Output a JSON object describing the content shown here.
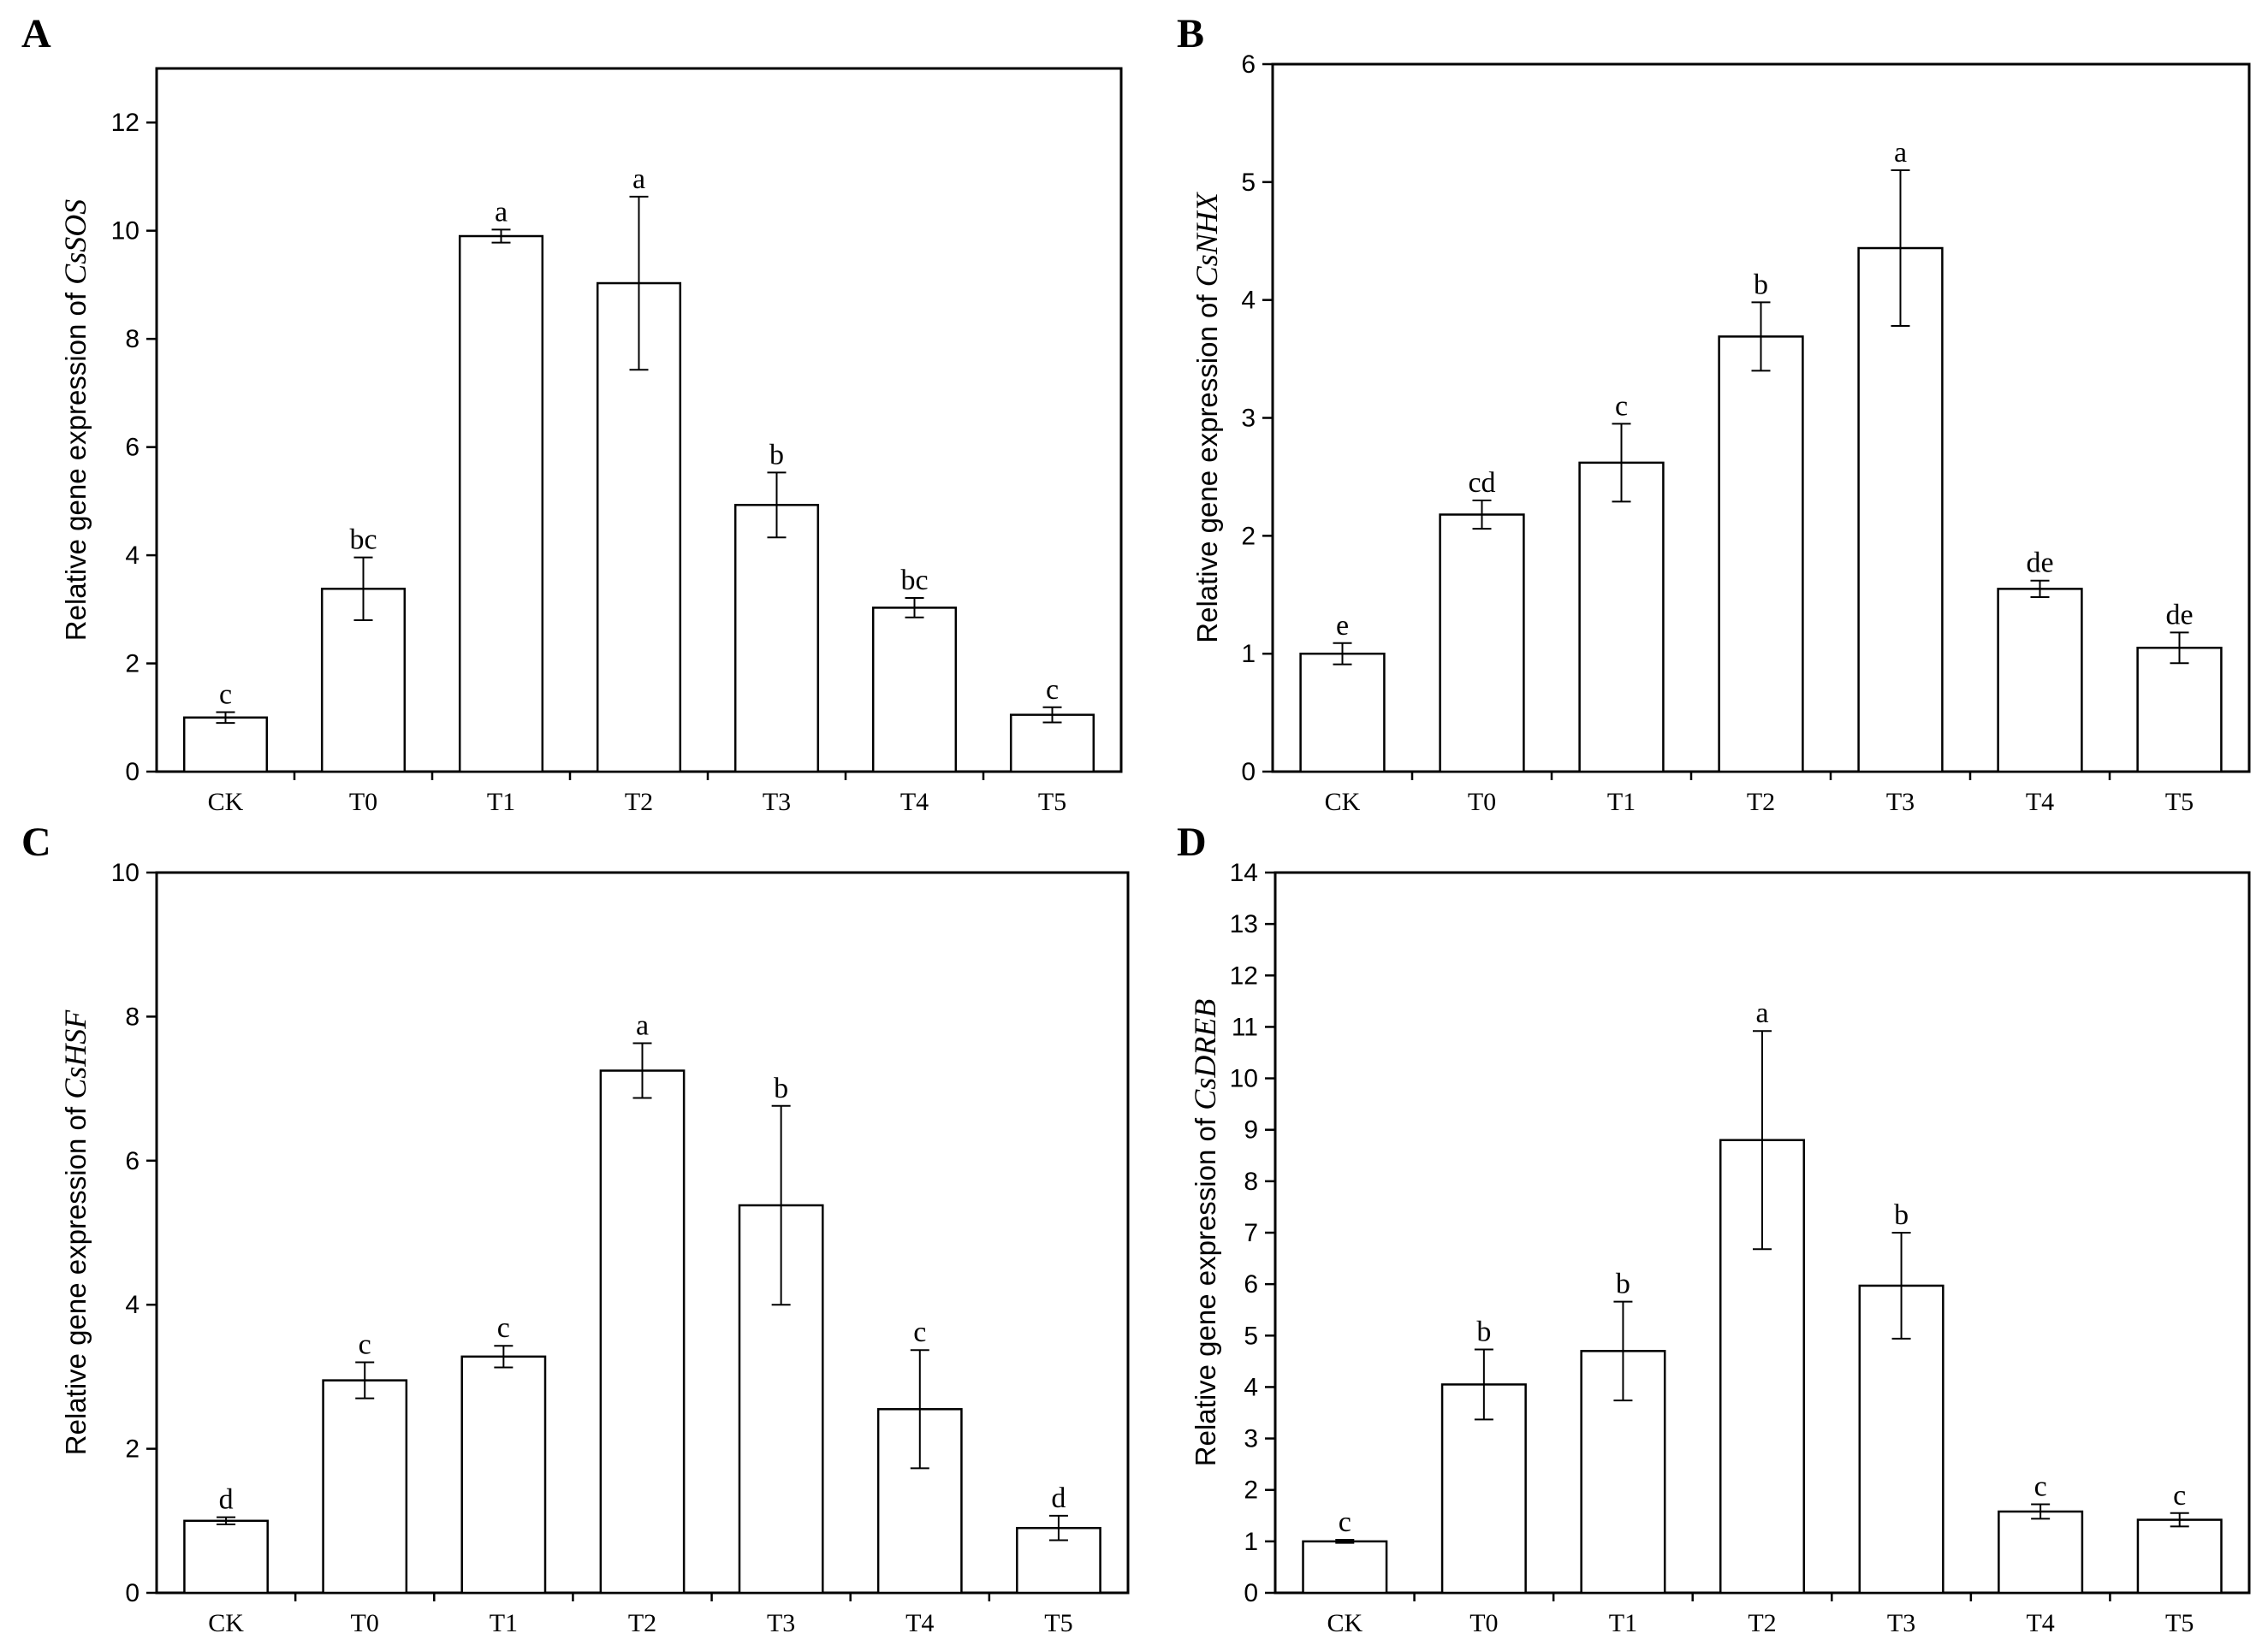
{
  "chart_data": [
    {
      "panel": "A",
      "type": "bar",
      "ylabel": "Relative gene expression of ",
      "gene": "CsSOS",
      "categories": [
        "CK",
        "T0",
        "T1",
        "T2",
        "T3",
        "T4",
        "T5"
      ],
      "values": [
        1.0,
        3.38,
        9.9,
        9.03,
        4.93,
        3.03,
        1.05
      ],
      "errors": [
        0.1,
        0.58,
        0.12,
        1.6,
        0.6,
        0.18,
        0.14
      ],
      "significance": [
        "c",
        "bc",
        "a",
        "a",
        "b",
        "bc",
        "c"
      ],
      "ylim": [
        0,
        13
      ],
      "yticks": [
        0,
        2,
        4,
        6,
        8,
        10,
        12
      ]
    },
    {
      "panel": "B",
      "type": "bar",
      "ylabel": "Relative gene expression of ",
      "gene": "CsNHX",
      "categories": [
        "CK",
        "T0",
        "T1",
        "T2",
        "T3",
        "T4",
        "T5"
      ],
      "values": [
        1.0,
        2.18,
        2.62,
        3.69,
        4.44,
        1.55,
        1.05
      ],
      "errors": [
        0.09,
        0.12,
        0.33,
        0.29,
        0.66,
        0.07,
        0.13
      ],
      "significance": [
        "e",
        "cd",
        "c",
        "b",
        "a",
        "de",
        "de"
      ],
      "ylim": [
        0,
        6
      ],
      "yticks": [
        0,
        1,
        2,
        3,
        4,
        5,
        6
      ]
    },
    {
      "panel": "C",
      "type": "bar",
      "ylabel": "Relative gene expression of ",
      "gene": "CsHSF",
      "categories": [
        "CK",
        "T0",
        "T1",
        "T2",
        "T3",
        "T4",
        "T5"
      ],
      "values": [
        1.0,
        2.95,
        3.28,
        7.25,
        5.38,
        2.55,
        0.9
      ],
      "errors": [
        0.05,
        0.25,
        0.15,
        0.38,
        1.38,
        0.82,
        0.17
      ],
      "significance": [
        "d",
        "c",
        "c",
        "a",
        "b",
        "c",
        "d"
      ],
      "ylim": [
        0,
        10
      ],
      "yticks": [
        0,
        2,
        4,
        6,
        8,
        10
      ]
    },
    {
      "panel": "D",
      "type": "bar",
      "ylabel": "Relative gene expression of ",
      "gene": "CsDREB",
      "categories": [
        "CK",
        "T0",
        "T1",
        "T2",
        "T3",
        "T4",
        "T5"
      ],
      "values": [
        1.0,
        4.05,
        4.7,
        8.8,
        5.97,
        1.58,
        1.42
      ],
      "errors": [
        0.03,
        0.68,
        0.96,
        2.12,
        1.03,
        0.14,
        0.13
      ],
      "significance": [
        "c",
        "b",
        "b",
        "a",
        "b",
        "c",
        "c"
      ],
      "ylim": [
        0,
        14
      ],
      "yticks": [
        0,
        1,
        2,
        3,
        4,
        5,
        6,
        7,
        8,
        9,
        10,
        11,
        12,
        13,
        14
      ]
    }
  ]
}
